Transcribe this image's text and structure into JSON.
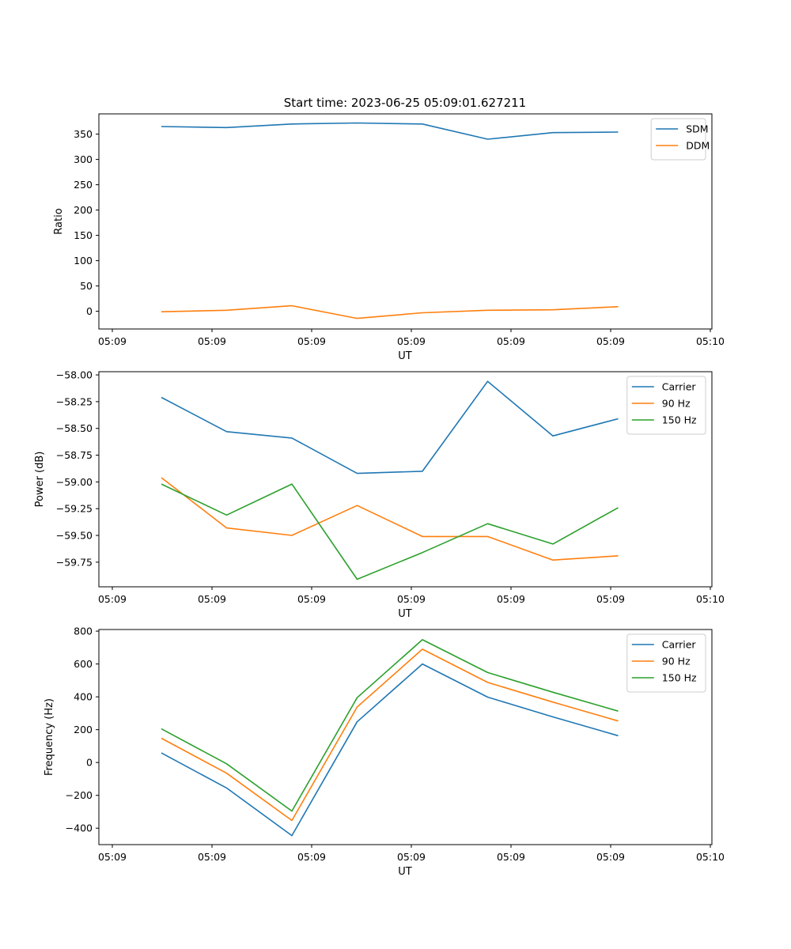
{
  "figure": {
    "title": "Start time: 2023-06-25 05:09:01.627211"
  },
  "chart_data": [
    {
      "type": "line",
      "xlabel": "UT",
      "ylabel": "Ratio",
      "x_ticks": [
        "05:09",
        "05:09",
        "05:09",
        "05:09",
        "05:09",
        "05:09",
        "05:10"
      ],
      "y_ticks": [
        "0",
        "50",
        "100",
        "150",
        "200",
        "250",
        "300",
        "350"
      ],
      "ylim": [
        -35,
        390
      ],
      "x_points": 8,
      "grid": false,
      "legend": "top-right",
      "series": [
        {
          "name": "SDM",
          "color": "#1f77b4",
          "values": [
            365,
            363,
            370,
            372,
            370,
            340,
            353,
            354
          ]
        },
        {
          "name": "DDM",
          "color": "#ff7f0e",
          "values": [
            -1,
            2,
            11,
            -14,
            -3,
            2,
            3,
            9
          ]
        }
      ]
    },
    {
      "type": "line",
      "xlabel": "UT",
      "ylabel": "Power (dB)",
      "x_ticks": [
        "05:09",
        "05:09",
        "05:09",
        "05:09",
        "05:09",
        "05:09",
        "05:10"
      ],
      "y_ticks": [
        "−59.75",
        "−59.50",
        "−59.25",
        "−59.00",
        "−58.75",
        "−58.50",
        "−58.25",
        "−58.00"
      ],
      "ylim": [
        -59.98,
        -57.97
      ],
      "x_points": 8,
      "grid": false,
      "legend": "top-right",
      "series": [
        {
          "name": "Carrier",
          "color": "#1f77b4",
          "values": [
            -58.21,
            -58.53,
            -58.59,
            -58.92,
            -58.9,
            -58.06,
            -58.57,
            -58.41
          ]
        },
        {
          "name": "90 Hz",
          "color": "#ff7f0e",
          "values": [
            -58.96,
            -59.43,
            -59.5,
            -59.22,
            -59.51,
            -59.51,
            -59.73,
            -59.69
          ]
        },
        {
          "name": "150 Hz",
          "color": "#2ca02c",
          "values": [
            -59.02,
            -59.31,
            -59.02,
            -59.91,
            -59.66,
            -59.39,
            -59.58,
            -59.24
          ]
        }
      ]
    },
    {
      "type": "line",
      "xlabel": "UT",
      "ylabel": "Frequency (Hz)",
      "x_ticks": [
        "05:09",
        "05:09",
        "05:09",
        "05:09",
        "05:09",
        "05:09",
        "05:10"
      ],
      "y_ticks": [
        "−400",
        "−200",
        "0",
        "200",
        "400",
        "600",
        "800"
      ],
      "ylim": [
        -500,
        810
      ],
      "x_points": 8,
      "grid": false,
      "legend": "top-right",
      "series": [
        {
          "name": "Carrier",
          "color": "#1f77b4",
          "values": [
            58,
            -155,
            -445,
            248,
            600,
            398,
            278,
            163
          ]
        },
        {
          "name": "90 Hz",
          "color": "#ff7f0e",
          "values": [
            148,
            -65,
            -353,
            338,
            690,
            488,
            368,
            253
          ]
        },
        {
          "name": "150 Hz",
          "color": "#2ca02c",
          "values": [
            205,
            -8,
            -296,
            395,
            748,
            548,
            428,
            313
          ]
        }
      ]
    }
  ]
}
